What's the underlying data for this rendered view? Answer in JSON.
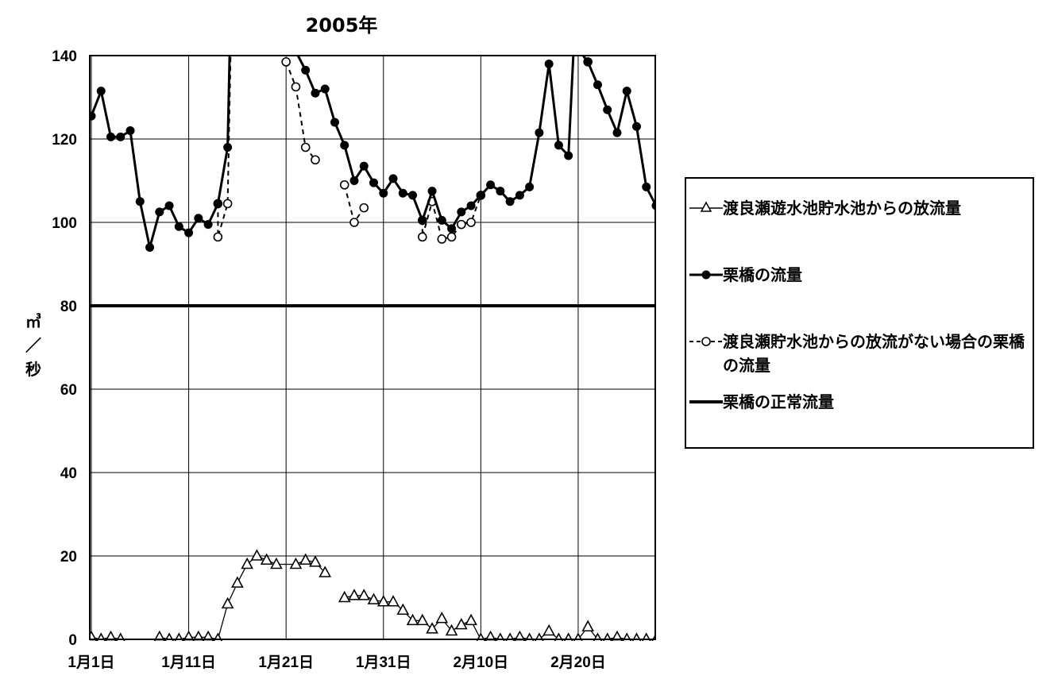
{
  "chart_data": {
    "type": "line",
    "title": "2005年",
    "ylabel": "㎥/秒",
    "ylim": [
      0,
      140
    ],
    "yticks": [
      0,
      20,
      40,
      60,
      80,
      100,
      120,
      140
    ],
    "x_range": [
      "1月1日",
      "2月28日"
    ],
    "x_tick_labels": [
      "1月1日",
      "1月11日",
      "1月21日",
      "1月31日",
      "2月10日",
      "2月20日"
    ],
    "grid": true,
    "legend_position": "right",
    "series": [
      {
        "name": "渡良瀬遊水池貯水池からの放流量",
        "marker": "open-triangle",
        "line": "thin-solid",
        "segments": [
          [
            [
              1,
              0.5
            ],
            [
              2,
              0
            ],
            [
              3,
              0.5
            ],
            [
              4,
              0
            ]
          ],
          [
            [
              8,
              0.5
            ],
            [
              9,
              0
            ],
            [
              10,
              0
            ],
            [
              11,
              0.5
            ],
            [
              12,
              0.5
            ],
            [
              13,
              0.5
            ],
            [
              14,
              0
            ],
            [
              15,
              8.5
            ],
            [
              16,
              13.5
            ],
            [
              17,
              18
            ],
            [
              18,
              20
            ],
            [
              19,
              19
            ],
            [
              20,
              18
            ],
            [
              22,
              18
            ],
            [
              23,
              19
            ],
            [
              24,
              18.5
            ],
            [
              25,
              16
            ]
          ],
          [
            [
              27,
              10
            ],
            [
              28,
              10.5
            ],
            [
              29,
              10.5
            ],
            [
              30,
              9.5
            ],
            [
              31,
              9
            ],
            [
              32,
              9
            ],
            [
              33,
              7
            ],
            [
              34,
              4.5
            ],
            [
              35,
              4.5
            ],
            [
              36,
              2.5
            ],
            [
              37,
              5
            ],
            [
              38,
              2
            ],
            [
              39,
              3.5
            ],
            [
              40,
              4.5
            ],
            [
              41,
              0
            ],
            [
              42,
              0.5
            ],
            [
              43,
              0
            ],
            [
              44,
              0
            ],
            [
              45,
              0.5
            ],
            [
              46,
              0
            ],
            [
              47,
              0
            ],
            [
              48,
              2
            ],
            [
              49,
              0
            ],
            [
              50,
              0
            ],
            [
              51,
              0
            ],
            [
              52,
              3
            ],
            [
              53,
              0
            ],
            [
              54,
              0
            ],
            [
              55,
              0.5
            ],
            [
              56,
              0
            ],
            [
              57,
              0
            ],
            [
              58,
              0
            ],
            [
              59,
              0
            ]
          ]
        ]
      },
      {
        "name": "栗橋の流量",
        "marker": "filled-circle",
        "line": "thick-solid",
        "segments": [
          [
            [
              1,
              125.5
            ],
            [
              2,
              131.5
            ],
            [
              3,
              120.5
            ],
            [
              4,
              120.5
            ],
            [
              5,
              122
            ],
            [
              6,
              105
            ],
            [
              7,
              94
            ],
            [
              8,
              102.5
            ],
            [
              9,
              104
            ],
            [
              10,
              99
            ],
            [
              11,
              97.5
            ],
            [
              12,
              101
            ],
            [
              13,
              99.5
            ],
            [
              14,
              104.5
            ],
            [
              15,
              118
            ],
            [
              15.2,
              140
            ]
          ],
          [
            [
              22,
              141
            ],
            [
              23,
              136.5
            ],
            [
              24,
              131
            ],
            [
              25,
              132
            ],
            [
              26,
              124
            ],
            [
              27,
              118.5
            ],
            [
              28,
              110
            ],
            [
              29,
              113.5
            ],
            [
              30,
              109.5
            ],
            [
              31,
              107
            ],
            [
              32,
              110.5
            ],
            [
              33,
              107
            ],
            [
              34,
              106.5
            ],
            [
              35,
              100.5
            ],
            [
              36,
              107.5
            ],
            [
              37,
              100.5
            ],
            [
              38,
              98.5
            ],
            [
              39,
              102.5
            ],
            [
              40,
              104
            ],
            [
              41,
              106.5
            ],
            [
              42,
              109
            ],
            [
              43,
              107.5
            ],
            [
              44,
              105
            ],
            [
              45,
              106.5
            ],
            [
              46,
              108.5
            ],
            [
              47,
              121.5
            ],
            [
              48,
              138
            ],
            [
              49,
              118.5
            ],
            [
              50,
              116
            ],
            [
              50.5,
              140
            ]
          ],
          [
            [
              51.5,
              140
            ],
            [
              52,
              138.5
            ],
            [
              53,
              133
            ],
            [
              54,
              127
            ],
            [
              55,
              121.5
            ],
            [
              56,
              131.5
            ],
            [
              57,
              123
            ],
            [
              58,
              108.5
            ],
            [
              59,
              104
            ]
          ]
        ]
      },
      {
        "name": "渡良瀬貯水池からの放流がない場合の栗橋の流量",
        "marker": "open-circle",
        "line": "dashed",
        "segments": [
          [
            [
              14,
              104.5
            ],
            [
              14,
              96.5
            ],
            [
              15,
              104.5
            ],
            [
              15.3,
              140
            ]
          ],
          [
            [
              21,
              138.5
            ],
            [
              22,
              132.5
            ],
            [
              23,
              118
            ],
            [
              24,
              115
            ]
          ],
          [
            [
              27,
              109
            ],
            [
              28,
              100
            ],
            [
              29,
              103.5
            ]
          ],
          [
            [
              35,
              100.5
            ],
            [
              35,
              96.5
            ],
            [
              36,
              105
            ],
            [
              37,
              96
            ],
            [
              38,
              96.5
            ],
            [
              39,
              99.5
            ],
            [
              40,
              100
            ],
            [
              41,
              106.5
            ]
          ],
          [
            [
              52,
              138.5
            ]
          ]
        ]
      },
      {
        "name": "栗橋の正常流量",
        "marker": "none",
        "line": "very-thick-solid",
        "segments": [
          [
            [
              0,
              80
            ],
            [
              59,
              80
            ]
          ]
        ]
      }
    ]
  }
}
